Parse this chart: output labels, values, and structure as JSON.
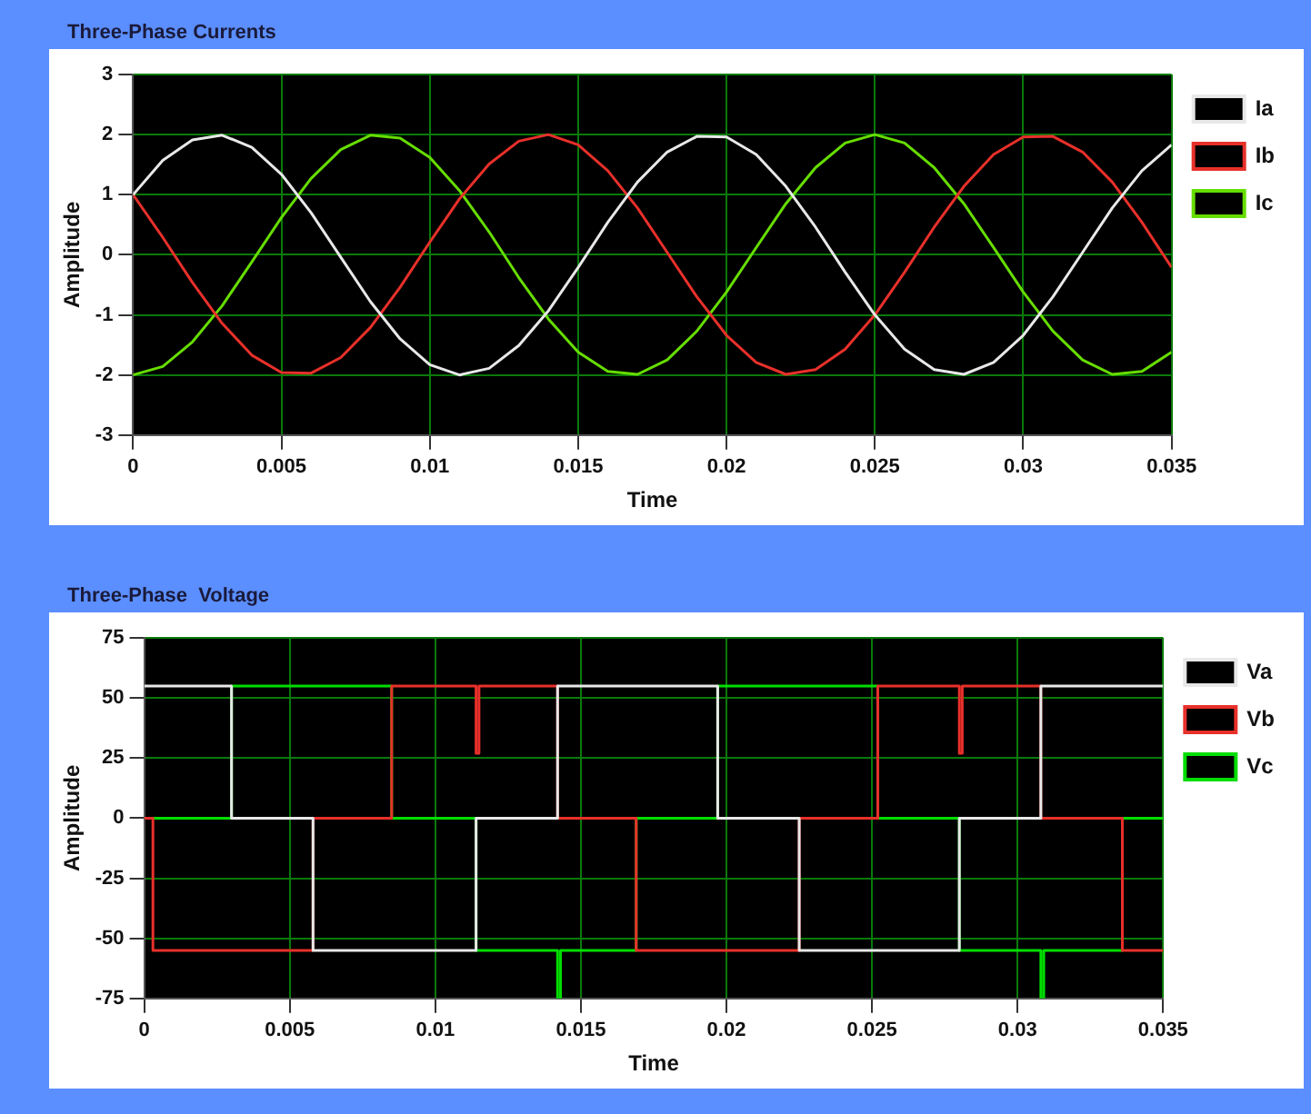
{
  "chart_data": [
    {
      "type": "line",
      "title": "Three-Phase Currents",
      "xlabel": "Time",
      "ylabel": "Amplitude",
      "xlim": [
        0,
        0.035
      ],
      "xticks": [
        0,
        0.005,
        0.01,
        0.015,
        0.02,
        0.025,
        0.03,
        0.035
      ],
      "ylim": [
        -3,
        3
      ],
      "yticks": [
        -3,
        -2,
        -1,
        0,
        1,
        2,
        3
      ],
      "grid": true,
      "legend": "right",
      "marker": "none",
      "line_style": "solid",
      "x": [
        0,
        0.001,
        0.002,
        0.003,
        0.004,
        0.005,
        0.006,
        0.007,
        0.008,
        0.009,
        0.01,
        0.011,
        0.012,
        0.013,
        0.014,
        0.015,
        0.016,
        0.017,
        0.018,
        0.019,
        0.02,
        0.021,
        0.022,
        0.023,
        0.024,
        0.025,
        0.026,
        0.027,
        0.028,
        0.029,
        0.03,
        0.031,
        0.032,
        0.033,
        0.034,
        0.035
      ],
      "series": [
        {
          "name": "Ia",
          "color": "#e8e8e8",
          "values": [
            1.0,
            1.57,
            1.91,
            1.99,
            1.79,
            1.34,
            0.7,
            -0.04,
            -0.78,
            -1.4,
            -1.83,
            -2.0,
            -1.89,
            -1.51,
            -0.93,
            -0.21,
            0.54,
            1.21,
            1.71,
            1.97,
            1.96,
            1.67,
            1.14,
            0.46,
            -0.29,
            -1.0,
            -1.57,
            -1.91,
            -1.99,
            -1.79,
            -1.34,
            -0.7,
            0.04,
            0.78,
            1.4,
            1.83
          ]
        },
        {
          "name": "Ib",
          "color": "#e8302a",
          "values": [
            1.0,
            0.29,
            -0.46,
            -1.14,
            -1.67,
            -1.96,
            -1.97,
            -1.71,
            -1.21,
            -0.54,
            0.21,
            0.93,
            1.51,
            1.89,
            2.0,
            1.83,
            1.4,
            0.78,
            0.04,
            -0.7,
            -1.34,
            -1.79,
            -1.99,
            -1.91,
            -1.57,
            -1.0,
            -0.29,
            0.46,
            1.14,
            1.67,
            1.96,
            1.97,
            1.71,
            1.21,
            0.54,
            -0.21
          ]
        },
        {
          "name": "Ic",
          "color": "#66dd00",
          "values": [
            -2.0,
            -1.86,
            -1.45,
            -0.85,
            -0.12,
            0.62,
            1.27,
            1.75,
            1.99,
            1.94,
            1.62,
            1.07,
            0.38,
            -0.38,
            -1.07,
            -1.62,
            -1.94,
            -1.99,
            -1.75,
            -1.27,
            -0.62,
            0.12,
            0.85,
            1.45,
            1.86,
            2.0,
            1.86,
            1.45,
            0.85,
            0.12,
            -0.62,
            -1.27,
            -1.75,
            -1.99,
            -1.94,
            -1.62
          ]
        }
      ]
    },
    {
      "type": "step",
      "title": "Three-Phase  Voltage",
      "xlabel": "Time",
      "ylabel": "Amplitude",
      "xlim": [
        0,
        0.035
      ],
      "xticks": [
        0,
        0.005,
        0.01,
        0.015,
        0.02,
        0.025,
        0.03,
        0.035
      ],
      "ylim": [
        -75,
        75
      ],
      "yticks": [
        -75,
        -50,
        -25,
        0,
        25,
        50,
        75
      ],
      "grid": true,
      "legend": "right",
      "marker": "none",
      "line_style": "solid",
      "series": [
        {
          "name": "Va",
          "color": "#e8e8e8",
          "x": [
            0,
            0.003,
            0.0058,
            0.0114,
            0.0142,
            0.0197,
            0.0225,
            0.028,
            0.0308,
            0.035
          ],
          "values": [
            55,
            0,
            -55,
            0,
            55,
            0,
            -55,
            0,
            55,
            55
          ]
        },
        {
          "name": "Vb",
          "color": "#e8302a",
          "x": [
            0,
            0.0003,
            0.0058,
            0.0085,
            0.0114,
            0.0115,
            0.0142,
            0.0169,
            0.0225,
            0.0252,
            0.028,
            0.0281,
            0.0308,
            0.0336,
            0.035
          ],
          "values": [
            0,
            -55,
            0,
            55,
            27,
            55,
            0,
            -55,
            0,
            55,
            27,
            55,
            0,
            -55,
            -55
          ]
        },
        {
          "name": "Vc",
          "color": "#00dd00",
          "x": [
            0,
            0.003,
            0.0085,
            0.0114,
            0.0142,
            0.0143,
            0.0169,
            0.0197,
            0.0252,
            0.028,
            0.0308,
            0.0309,
            0.0336,
            0.035
          ],
          "values": [
            0,
            55,
            0,
            -55,
            -75,
            -55,
            0,
            55,
            0,
            -55,
            -75,
            -55,
            0,
            0
          ]
        }
      ]
    }
  ]
}
